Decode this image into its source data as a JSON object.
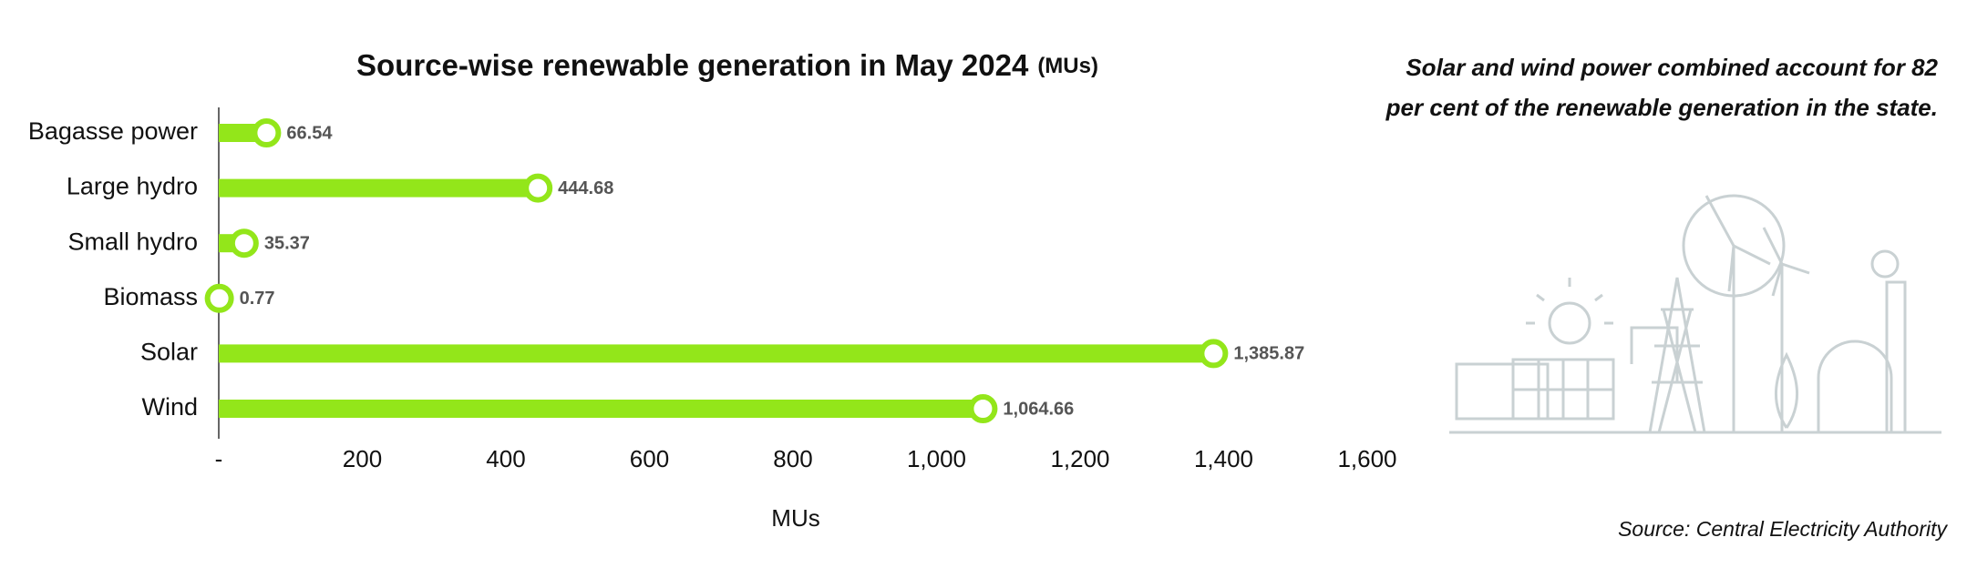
{
  "chart_data": {
    "type": "lollipop_bar",
    "title": "Source-wise renewable generation in May 2024",
    "title_unit": "(MUs)",
    "annotation": [
      "Solar and wind power combined account for 82",
      "per cent of the renewable generation in the state."
    ],
    "source": "Source: Central Electricity Authority",
    "x_label": "MUs",
    "categories": [
      "Bagasse power",
      "Large hydro",
      "Small hydro",
      "Biomass",
      "Solar",
      "Wind"
    ],
    "values": [
      66.54,
      444.68,
      35.37,
      0.77,
      1385.87,
      1064.66
    ],
    "value_labels": [
      "66.54",
      "444.68",
      "35.37",
      "0.77",
      "1,385.87",
      "1,064.66"
    ],
    "color": "#93e61a",
    "xlim": [
      0,
      1600
    ],
    "xticks": [
      {
        "value": 0,
        "label": "-"
      },
      200,
      400,
      600,
      800,
      {
        "value": 1000,
        "label": "1,000"
      },
      {
        "value": 1200,
        "label": "1,200"
      },
      {
        "value": 1400,
        "label": "1,400"
      },
      {
        "value": 1600,
        "label": "1,600"
      }
    ],
    "grid": false
  }
}
